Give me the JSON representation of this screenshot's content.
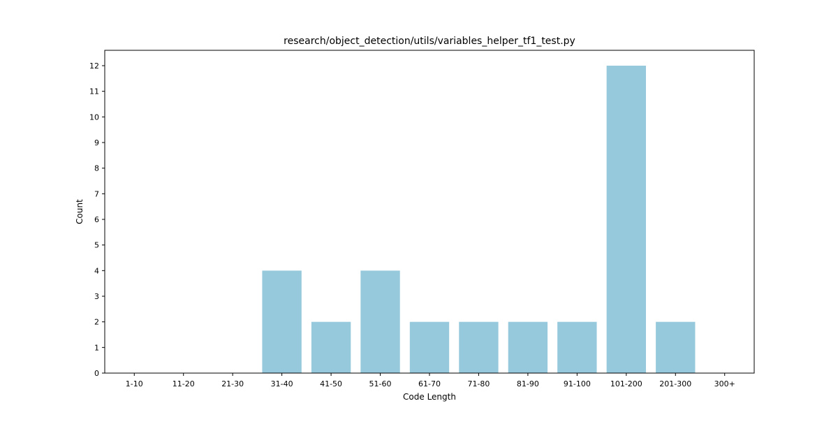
{
  "chart_data": {
    "type": "bar",
    "title": "research/object_detection/utils/variables_helper_tf1_test.py",
    "xlabel": "Code Length",
    "ylabel": "Count",
    "categories": [
      "1-10",
      "11-20",
      "21-30",
      "31-40",
      "41-50",
      "51-60",
      "61-70",
      "71-80",
      "81-90",
      "91-100",
      "101-200",
      "201-300",
      "300+"
    ],
    "values": [
      0,
      0,
      0,
      4,
      2,
      4,
      2,
      2,
      2,
      2,
      12,
      2,
      0
    ],
    "ylim": [
      0,
      12.6
    ],
    "yticks": [
      0,
      1,
      2,
      3,
      4,
      5,
      6,
      7,
      8,
      9,
      10,
      11,
      12
    ],
    "bar_color": "#96c9dc",
    "grid": false,
    "legend": "none"
  }
}
